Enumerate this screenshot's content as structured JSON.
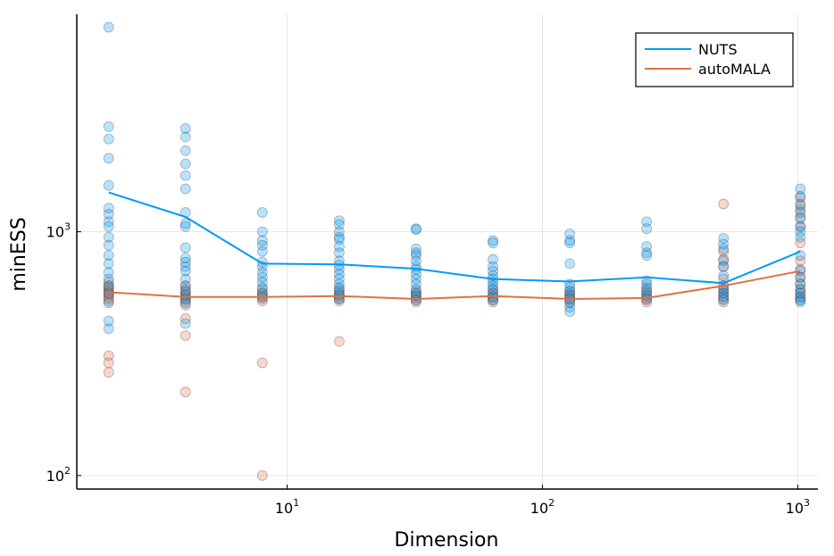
{
  "chart_data": {
    "type": "scatter",
    "xscale": "log10",
    "yscale": "log10",
    "xlabel": "Dimension",
    "ylabel": "minESS",
    "xlim": [
      1.5,
      1200
    ],
    "ylim": [
      88,
      7800
    ],
    "grid": true,
    "legend_position": "top-right",
    "x_ticks": [
      {
        "value": 10,
        "base": "10",
        "exp": "1"
      },
      {
        "value": 100,
        "base": "10",
        "exp": "2"
      },
      {
        "value": 1000,
        "base": "10",
        "exp": "3"
      }
    ],
    "y_ticks": [
      {
        "value": 100,
        "base": "10",
        "exp": "2"
      },
      {
        "value": 1000,
        "base": "10",
        "exp": "3"
      }
    ],
    "series": [
      {
        "name": "NUTS",
        "color": "#009AFA",
        "line": {
          "x": [
            2,
            4,
            8,
            16,
            32,
            64,
            128,
            256,
            512,
            1024
          ],
          "y": [
            1450,
            1150,
            740,
            735,
            705,
            640,
            625,
            650,
            615,
            830
          ]
        },
        "points": [
          [
            2,
            6900
          ],
          [
            2,
            2700
          ],
          [
            2,
            2400
          ],
          [
            2,
            2000
          ],
          [
            2,
            1550
          ],
          [
            2,
            1250
          ],
          [
            2,
            1180
          ],
          [
            2,
            1100
          ],
          [
            2,
            1050
          ],
          [
            2,
            950
          ],
          [
            2,
            880
          ],
          [
            2,
            800
          ],
          [
            2,
            740
          ],
          [
            2,
            680
          ],
          [
            2,
            640
          ],
          [
            2,
            600
          ],
          [
            2,
            560
          ],
          [
            2,
            510
          ],
          [
            2,
            430
          ],
          [
            2,
            400
          ],
          [
            4,
            2650
          ],
          [
            4,
            2450
          ],
          [
            4,
            2150
          ],
          [
            4,
            1900
          ],
          [
            4,
            1700
          ],
          [
            4,
            1500
          ],
          [
            4,
            1200
          ],
          [
            4,
            1080
          ],
          [
            4,
            1050
          ],
          [
            4,
            860
          ],
          [
            4,
            780
          ],
          [
            4,
            750
          ],
          [
            4,
            720
          ],
          [
            4,
            690
          ],
          [
            4,
            640
          ],
          [
            4,
            600
          ],
          [
            4,
            570
          ],
          [
            4,
            550
          ],
          [
            4,
            530
          ],
          [
            4,
            510
          ],
          [
            4,
            420
          ],
          [
            8,
            1200
          ],
          [
            8,
            1000
          ],
          [
            8,
            920
          ],
          [
            8,
            880
          ],
          [
            8,
            830
          ],
          [
            8,
            750
          ],
          [
            8,
            720
          ],
          [
            8,
            680
          ],
          [
            8,
            650
          ],
          [
            8,
            620
          ],
          [
            8,
            590
          ],
          [
            8,
            560
          ],
          [
            8,
            540
          ],
          [
            16,
            1110
          ],
          [
            16,
            1070
          ],
          [
            16,
            1000
          ],
          [
            16,
            950
          ],
          [
            16,
            930
          ],
          [
            16,
            870
          ],
          [
            16,
            820
          ],
          [
            16,
            760
          ],
          [
            16,
            730
          ],
          [
            16,
            700
          ],
          [
            16,
            670
          ],
          [
            16,
            640
          ],
          [
            16,
            610
          ],
          [
            16,
            590
          ],
          [
            16,
            570
          ],
          [
            16,
            550
          ],
          [
            16,
            530
          ],
          [
            32,
            1030
          ],
          [
            32,
            1020
          ],
          [
            32,
            850
          ],
          [
            32,
            820
          ],
          [
            32,
            800
          ],
          [
            32,
            760
          ],
          [
            32,
            720
          ],
          [
            32,
            700
          ],
          [
            32,
            670
          ],
          [
            32,
            640
          ],
          [
            32,
            610
          ],
          [
            32,
            580
          ],
          [
            32,
            560
          ],
          [
            32,
            545
          ],
          [
            32,
            525
          ],
          [
            64,
            920
          ],
          [
            64,
            900
          ],
          [
            64,
            770
          ],
          [
            64,
            720
          ],
          [
            64,
            690
          ],
          [
            64,
            660
          ],
          [
            64,
            640
          ],
          [
            64,
            620
          ],
          [
            64,
            600
          ],
          [
            64,
            580
          ],
          [
            64,
            560
          ],
          [
            64,
            540
          ],
          [
            64,
            525
          ],
          [
            128,
            980
          ],
          [
            128,
            920
          ],
          [
            128,
            900
          ],
          [
            128,
            740
          ],
          [
            128,
            610
          ],
          [
            128,
            590
          ],
          [
            128,
            570
          ],
          [
            128,
            550
          ],
          [
            128,
            530
          ],
          [
            128,
            510
          ],
          [
            128,
            490
          ],
          [
            128,
            470
          ],
          [
            256,
            1100
          ],
          [
            256,
            1030
          ],
          [
            256,
            870
          ],
          [
            256,
            820
          ],
          [
            256,
            800
          ],
          [
            256,
            630
          ],
          [
            256,
            610
          ],
          [
            256,
            590
          ],
          [
            256,
            570
          ],
          [
            256,
            550
          ],
          [
            256,
            530
          ],
          [
            512,
            940
          ],
          [
            512,
            890
          ],
          [
            512,
            850
          ],
          [
            512,
            760
          ],
          [
            512,
            720
          ],
          [
            512,
            660
          ],
          [
            512,
            600
          ],
          [
            512,
            580
          ],
          [
            512,
            560
          ],
          [
            512,
            540
          ],
          [
            512,
            525
          ],
          [
            1024,
            1500
          ],
          [
            1024,
            1400
          ],
          [
            1024,
            1280
          ],
          [
            1024,
            1200
          ],
          [
            1024,
            1130
          ],
          [
            1024,
            1050
          ],
          [
            1024,
            1000
          ],
          [
            1024,
            950
          ],
          [
            1024,
            800
          ],
          [
            1024,
            700
          ],
          [
            1024,
            650
          ],
          [
            1024,
            610
          ],
          [
            1024,
            580
          ],
          [
            1024,
            560
          ],
          [
            1024,
            540
          ],
          [
            1024,
            525
          ],
          [
            1024,
            515
          ]
        ]
      },
      {
        "name": "autoMALA",
        "color": "#E26F46",
        "line": {
          "x": [
            2,
            4,
            8,
            16,
            32,
            64,
            128,
            256,
            512,
            1024
          ],
          "y": [
            565,
            540,
            540,
            545,
            530,
            545,
            530,
            535,
            600,
            690
          ]
        },
        "points": [
          [
            2,
            620
          ],
          [
            2,
            600
          ],
          [
            2,
            590
          ],
          [
            2,
            580
          ],
          [
            2,
            570
          ],
          [
            2,
            560
          ],
          [
            2,
            550
          ],
          [
            2,
            540
          ],
          [
            2,
            530
          ],
          [
            2,
            520
          ],
          [
            2,
            310
          ],
          [
            2,
            290
          ],
          [
            2,
            265
          ],
          [
            4,
            600
          ],
          [
            4,
            580
          ],
          [
            4,
            565
          ],
          [
            4,
            550
          ],
          [
            4,
            540
          ],
          [
            4,
            530
          ],
          [
            4,
            520
          ],
          [
            4,
            500
          ],
          [
            4,
            440
          ],
          [
            4,
            375
          ],
          [
            4,
            220
          ],
          [
            8,
            580
          ],
          [
            8,
            560
          ],
          [
            8,
            550
          ],
          [
            8,
            540
          ],
          [
            8,
            530
          ],
          [
            8,
            520
          ],
          [
            8,
            290
          ],
          [
            8,
            100
          ],
          [
            16,
            580
          ],
          [
            16,
            560
          ],
          [
            16,
            550
          ],
          [
            16,
            540
          ],
          [
            16,
            530
          ],
          [
            16,
            520
          ],
          [
            16,
            355
          ],
          [
            32,
            570
          ],
          [
            32,
            555
          ],
          [
            32,
            545
          ],
          [
            32,
            535
          ],
          [
            32,
            525
          ],
          [
            32,
            515
          ],
          [
            64,
            580
          ],
          [
            64,
            560
          ],
          [
            64,
            545
          ],
          [
            64,
            535
          ],
          [
            64,
            525
          ],
          [
            64,
            515
          ],
          [
            128,
            570
          ],
          [
            128,
            555
          ],
          [
            128,
            545
          ],
          [
            128,
            535
          ],
          [
            128,
            525
          ],
          [
            128,
            515
          ],
          [
            256,
            580
          ],
          [
            256,
            560
          ],
          [
            256,
            545
          ],
          [
            256,
            535
          ],
          [
            256,
            525
          ],
          [
            256,
            515
          ],
          [
            512,
            1300
          ],
          [
            512,
            830
          ],
          [
            512,
            770
          ],
          [
            512,
            720
          ],
          [
            512,
            640
          ],
          [
            512,
            600
          ],
          [
            512,
            580
          ],
          [
            512,
            560
          ],
          [
            512,
            545
          ],
          [
            512,
            530
          ],
          [
            512,
            515
          ],
          [
            1024,
            1380
          ],
          [
            1024,
            1300
          ],
          [
            1024,
            1230
          ],
          [
            1024,
            1150
          ],
          [
            1024,
            1050
          ],
          [
            1024,
            900
          ],
          [
            1024,
            760
          ],
          [
            1024,
            690
          ],
          [
            1024,
            650
          ],
          [
            1024,
            610
          ],
          [
            1024,
            580
          ],
          [
            1024,
            560
          ],
          [
            1024,
            540
          ],
          [
            1024,
            525
          ]
        ]
      }
    ]
  }
}
